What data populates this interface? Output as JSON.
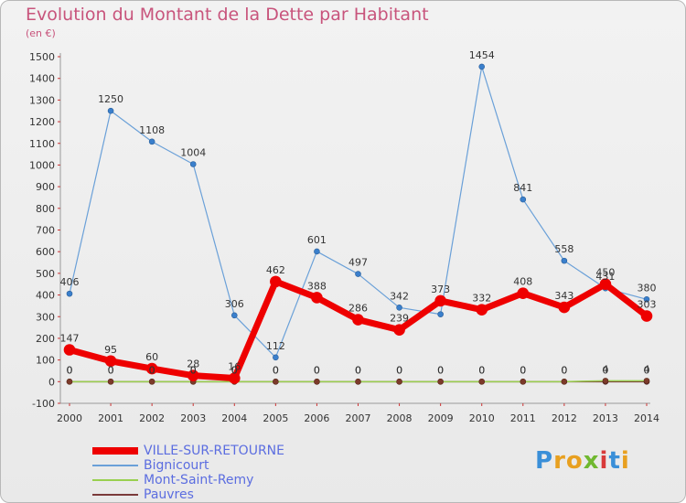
{
  "title": "Evolution du Montant de la Dette par Habitant",
  "unit": "(en €)",
  "logo": "Proxiti",
  "chart_data": {
    "type": "line",
    "categories": [
      "2000",
      "2001",
      "2002",
      "2003",
      "2004",
      "2005",
      "2006",
      "2007",
      "2008",
      "2009",
      "2010",
      "2011",
      "2012",
      "2013",
      "2014"
    ],
    "ylim": [
      -100,
      1500
    ],
    "yticks": [
      -100,
      0,
      100,
      200,
      300,
      400,
      500,
      600,
      700,
      800,
      900,
      1000,
      1100,
      1200,
      1300,
      1400,
      1500
    ],
    "grid": false,
    "legend": "bottom-left",
    "series": [
      {
        "name": "VILLE-SUR-RETOURNE",
        "color": "#ee0000",
        "values": [
          147,
          95,
          60,
          28,
          16,
          462,
          388,
          286,
          239,
          373,
          332,
          408,
          343,
          450,
          303
        ]
      },
      {
        "name": "Bignicourt",
        "color": "#6aa0d8",
        "values": [
          406,
          1250,
          1108,
          1004,
          306,
          112,
          601,
          497,
          342,
          311,
          1454,
          841,
          558,
          431,
          380
        ]
      },
      {
        "name": "Mont-Saint-Remy",
        "color": "#99d050",
        "values": [
          0,
          0,
          0,
          0,
          0,
          0,
          0,
          0,
          0,
          0,
          0,
          0,
          0,
          4,
          4
        ]
      },
      {
        "name": "Pauvres",
        "color": "#7a3a3a",
        "values": [
          0,
          0,
          0,
          0,
          0,
          0,
          0,
          0,
          0,
          0,
          0,
          0,
          0,
          0,
          0
        ]
      }
    ],
    "data_labels": {
      "VILLE-SUR-RETOURNE": [
        "147",
        "95",
        "60",
        "28",
        "16",
        "462",
        "388",
        "286",
        "239",
        "373",
        "332",
        "408",
        "343",
        "450",
        "303"
      ],
      "Bignicourt": [
        "406",
        "1250",
        "1108",
        "1004",
        "306",
        "112",
        "601",
        "497",
        "342",
        "",
        "1454",
        "841",
        "558",
        "431",
        "380"
      ],
      "Mont-Saint-Remy": [
        "0",
        "0",
        "0",
        "0",
        "0",
        "0",
        "0",
        "0",
        "0",
        "0",
        "0",
        "0",
        "0",
        "4",
        "4"
      ],
      "Pauvres": [
        "0",
        "0",
        "0",
        "0",
        "0",
        "0",
        "0",
        "0",
        "0",
        "0",
        "0",
        "0",
        "0",
        "0",
        "0"
      ]
    }
  }
}
